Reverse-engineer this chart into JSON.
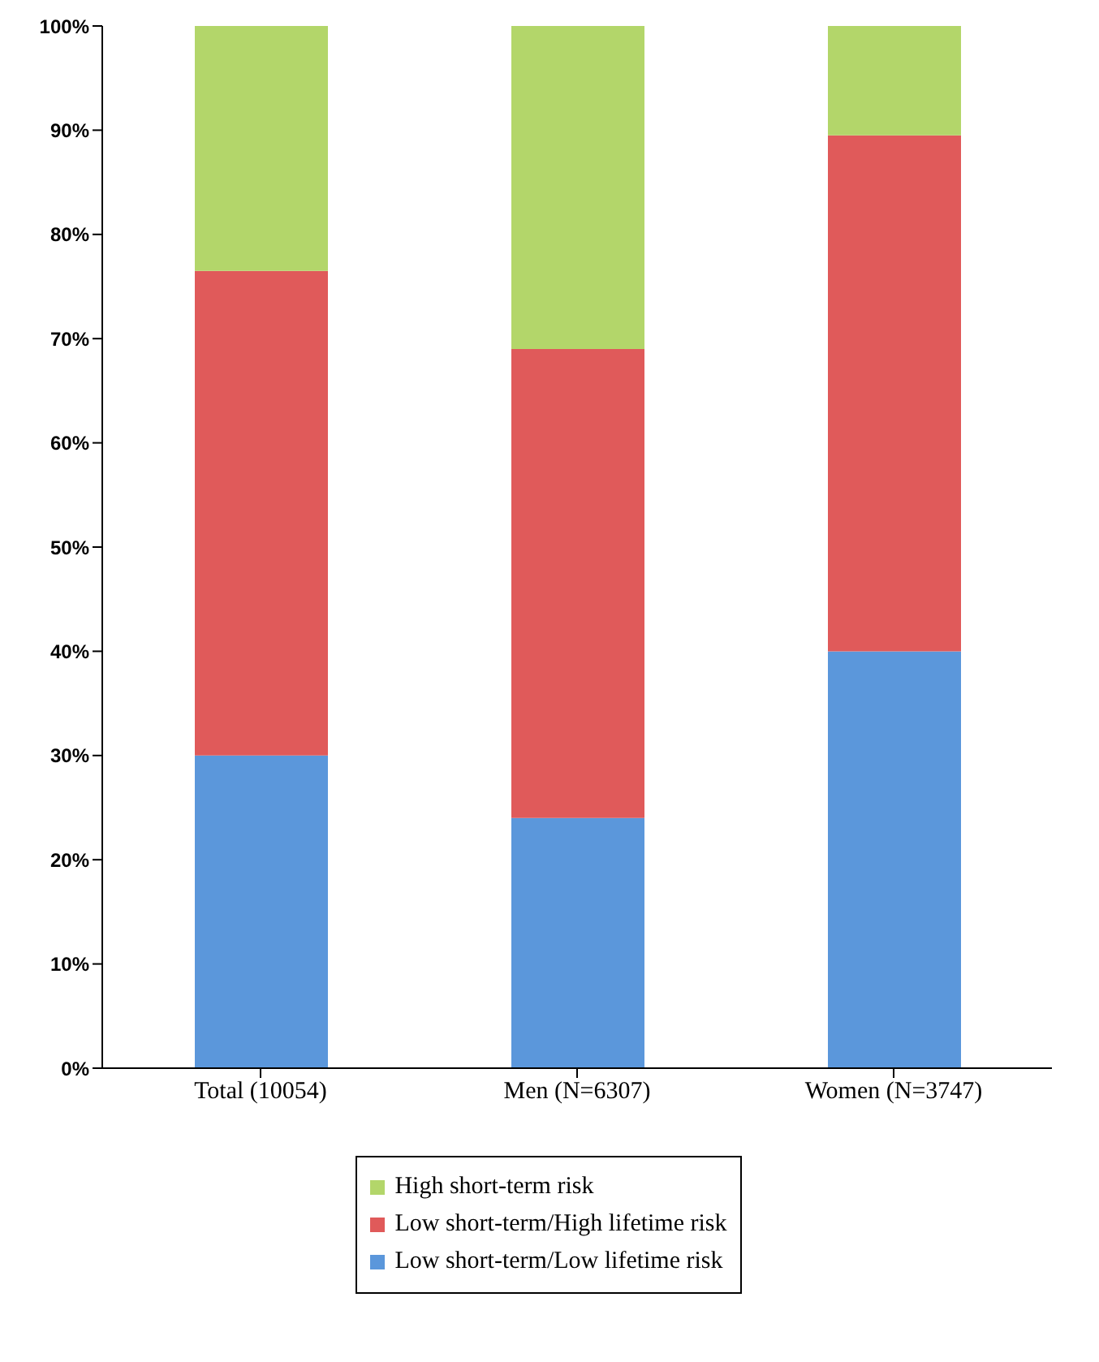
{
  "chart_data": {
    "type": "bar",
    "stacked": true,
    "categories": [
      "Total (10054)",
      "Men (N=6307)",
      "Women (N=3747)"
    ],
    "series": [
      {
        "name": "Low short-term/Low lifetime risk",
        "color": "#5b97db",
        "values": [
          30,
          24,
          40
        ]
      },
      {
        "name": "Low short-term/High lifetime risk",
        "color": "#e05a5a",
        "values": [
          46.5,
          45,
          49.5
        ]
      },
      {
        "name": "High short-term risk",
        "color": "#b3d66a",
        "values": [
          23.5,
          31,
          10.5
        ]
      }
    ],
    "ylim": [
      0,
      100
    ],
    "yticks": [
      {
        "value": 0,
        "label": "0%"
      },
      {
        "value": 10,
        "label": "10%"
      },
      {
        "value": 20,
        "label": "20%"
      },
      {
        "value": 30,
        "label": "30%"
      },
      {
        "value": 40,
        "label": "40%"
      },
      {
        "value": 50,
        "label": "50%"
      },
      {
        "value": 60,
        "label": "60%"
      },
      {
        "value": 70,
        "label": "70%"
      },
      {
        "value": 80,
        "label": "80%"
      },
      {
        "value": 90,
        "label": "90%"
      },
      {
        "value": 100,
        "label": "100%"
      }
    ],
    "grid": false,
    "legend": "bottom"
  }
}
